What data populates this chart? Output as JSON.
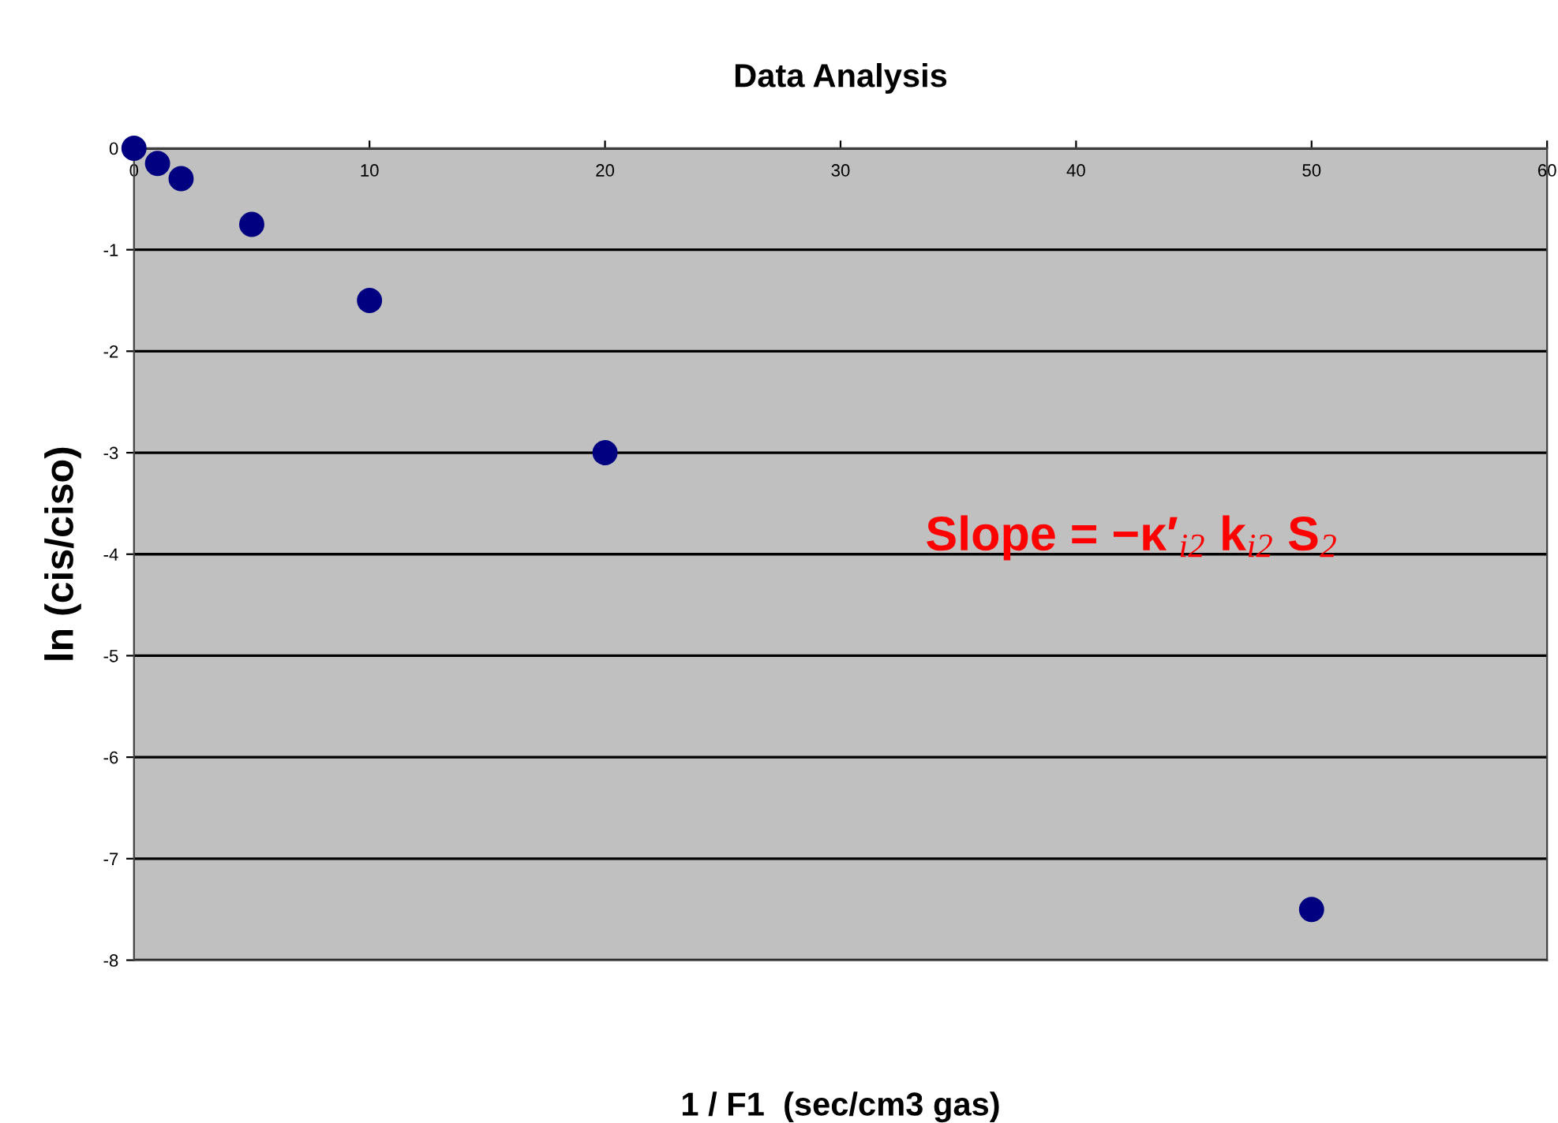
{
  "chart_data": {
    "type": "scatter",
    "title": "Data Analysis",
    "xlabel": "1 / F1  (sec/cm3 gas)",
    "ylabel": "ln (cis/ciso)",
    "x": [
      0,
      1,
      2,
      5,
      10,
      20,
      50
    ],
    "series": [
      {
        "color": "#000080",
        "values": [
          0,
          -0.15,
          -0.3,
          -0.75,
          -1.5,
          -3,
          -7.5
        ]
      }
    ],
    "xlim": [
      0,
      60
    ],
    "xticks": [
      0,
      10,
      20,
      30,
      40,
      50,
      60
    ],
    "ylim": [
      -8,
      0
    ],
    "yticks": [
      -8,
      -7,
      -6,
      -5,
      -4,
      -3,
      -2,
      -1,
      0
    ],
    "grid": "y",
    "marker": "circle",
    "annotations": [
      "Slope = −κ′$_{i2}$ k$_{i2}$ S$_{2}$"
    ]
  }
}
